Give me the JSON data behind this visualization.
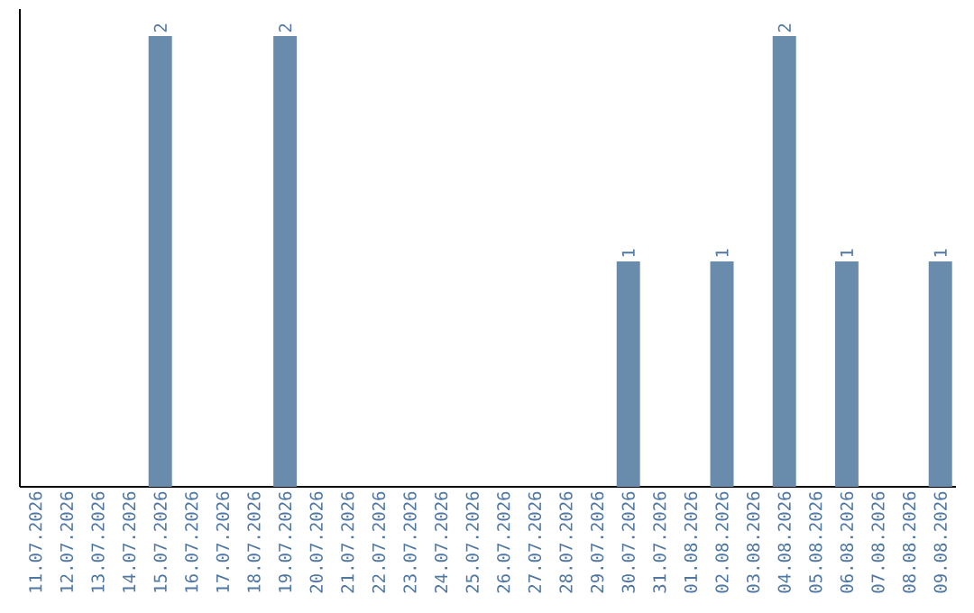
{
  "chart_data": {
    "type": "bar",
    "categories": [
      "11.07.2026",
      "12.07.2026",
      "13.07.2026",
      "14.07.2026",
      "15.07.2026",
      "16.07.2026",
      "17.07.2026",
      "18.07.2026",
      "19.07.2026",
      "20.07.2026",
      "21.07.2026",
      "22.07.2026",
      "23.07.2026",
      "24.07.2026",
      "25.07.2026",
      "26.07.2026",
      "27.07.2026",
      "28.07.2026",
      "29.07.2026",
      "30.07.2026",
      "31.07.2026",
      "01.08.2026",
      "02.08.2026",
      "03.08.2026",
      "04.08.2026",
      "05.08.2026",
      "06.08.2026",
      "07.08.2026",
      "08.08.2026",
      "09.08.2026"
    ],
    "values": [
      0,
      0,
      0,
      0,
      2,
      0,
      0,
      0,
      2,
      0,
      0,
      0,
      0,
      0,
      0,
      0,
      0,
      0,
      0,
      1,
      0,
      0,
      1,
      0,
      2,
      0,
      1,
      0,
      0,
      1
    ],
    "value_labels": [
      null,
      null,
      null,
      null,
      "2",
      null,
      null,
      null,
      "2",
      null,
      null,
      null,
      null,
      null,
      null,
      null,
      null,
      null,
      null,
      "1",
      null,
      null,
      "1",
      null,
      "2",
      null,
      "1",
      null,
      null,
      "1"
    ],
    "color": "#6a8cac"
  }
}
